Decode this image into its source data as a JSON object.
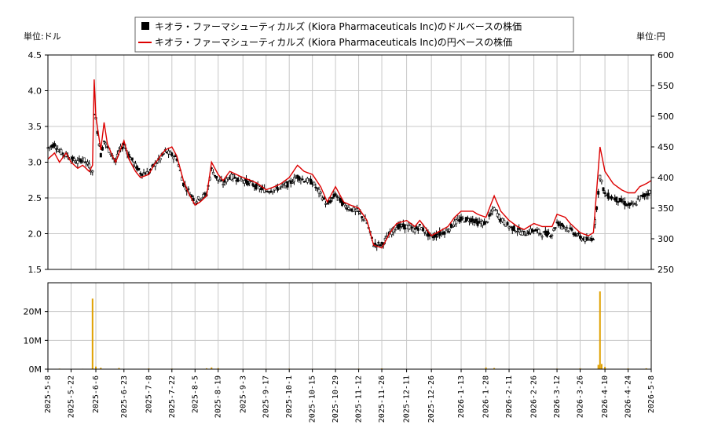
{
  "legend": {
    "usd_label": "キオラ・ファーマシューティカルズ (Kiora Pharmaceuticals Inc)のドルベースの株価",
    "jpy_label": "キオラ・ファーマシューティカルズ (Kiora Pharmaceuticals Inc)の円ベースの株価"
  },
  "left_unit": "単位:ドル",
  "right_unit": "単位:円",
  "colors": {
    "usd": "#000000",
    "jpy": "#dd0000",
    "volume": "#e0a000",
    "grid": "#c8c8c8"
  },
  "chart_data": [
    {
      "type": "line",
      "title": "",
      "x_ticks": [
        "2025-5-8",
        "2025-5-22",
        "2025-6-6",
        "2025-6-23",
        "2025-7-8",
        "2025-7-22",
        "2025-8-5",
        "2025-8-19",
        "2025-9-3",
        "2025-9-17",
        "2025-10-1",
        "2025-10-15",
        "2025-10-29",
        "2025-11-12",
        "2025-11-26",
        "2025-12-11",
        "2025-12-26",
        "2026-1-13",
        "2026-1-28",
        "2026-2-11",
        "2026-2-26",
        "2026-3-12",
        "2026-3-26",
        "2026-4-10",
        "2026-4-24",
        "2026-5-8"
      ],
      "y_left_ticks": [
        "1.5",
        "2.0",
        "2.5",
        "3.0",
        "3.5",
        "4.0",
        "4.5"
      ],
      "y_left_range": [
        1.5,
        4.5
      ],
      "y_right_ticks": [
        "250",
        "300",
        "350",
        "400",
        "450",
        "500",
        "550",
        "600"
      ],
      "y_right_range": [
        250,
        600
      ],
      "grid": true,
      "legend_position": "top-center",
      "series": [
        {
          "name": "キオラ・ファーマシューティカルズ (Kiora Pharmaceuticals Inc)のドルベースの株価",
          "axis": "left",
          "style": "candlestick",
          "points": [
            [
              "2025-5-8",
              3.2
            ],
            [
              "2025-5-12",
              3.25
            ],
            [
              "2025-5-15",
              3.15
            ],
            [
              "2025-5-19",
              3.1
            ],
            [
              "2025-5-22",
              3.05
            ],
            [
              "2025-5-26",
              3.0
            ],
            [
              "2025-5-29",
              3.05
            ],
            [
              "2025-6-2",
              2.95
            ],
            [
              "2025-6-4",
              2.85
            ],
            [
              "2025-6-5",
              3.7
            ],
            [
              "2025-6-6",
              3.6
            ],
            [
              "2025-6-9",
              3.1
            ],
            [
              "2025-6-11",
              3.3
            ],
            [
              "2025-6-13",
              3.2
            ],
            [
              "2025-6-16",
              3.1
            ],
            [
              "2025-6-18",
              3.0
            ],
            [
              "2025-6-20",
              3.15
            ],
            [
              "2025-6-23",
              3.25
            ],
            [
              "2025-6-26",
              3.1
            ],
            [
              "2025-6-30",
              2.95
            ],
            [
              "2025-7-3",
              2.85
            ],
            [
              "2025-7-8",
              2.85
            ],
            [
              "2025-7-11",
              2.95
            ],
            [
              "2025-7-15",
              3.05
            ],
            [
              "2025-7-18",
              3.15
            ],
            [
              "2025-7-22",
              3.1
            ],
            [
              "2025-7-25",
              3.05
            ],
            [
              "2025-7-29",
              2.7
            ],
            [
              "2025-8-1",
              2.6
            ],
            [
              "2025-8-5",
              2.45
            ],
            [
              "2025-8-8",
              2.5
            ],
            [
              "2025-8-12",
              2.55
            ],
            [
              "2025-8-15",
              2.9
            ],
            [
              "2025-8-19",
              2.75
            ],
            [
              "2025-8-22",
              2.7
            ],
            [
              "2025-8-26",
              2.8
            ],
            [
              "2025-9-3",
              2.75
            ],
            [
              "2025-9-8",
              2.7
            ],
            [
              "2025-9-12",
              2.65
            ],
            [
              "2025-9-17",
              2.6
            ],
            [
              "2025-9-22",
              2.62
            ],
            [
              "2025-9-26",
              2.65
            ],
            [
              "2025-10-1",
              2.7
            ],
            [
              "2025-10-6",
              2.8
            ],
            [
              "2025-10-10",
              2.75
            ],
            [
              "2025-10-15",
              2.72
            ],
            [
              "2025-10-20",
              2.55
            ],
            [
              "2025-10-24",
              2.4
            ],
            [
              "2025-10-29",
              2.55
            ],
            [
              "2025-11-3",
              2.4
            ],
            [
              "2025-11-7",
              2.35
            ],
            [
              "2025-11-12",
              2.3
            ],
            [
              "2025-11-17",
              2.15
            ],
            [
              "2025-11-21",
              1.85
            ],
            [
              "2025-11-26",
              1.85
            ],
            [
              "2025-12-1",
              2.0
            ],
            [
              "2025-12-5",
              2.1
            ],
            [
              "2025-12-11",
              2.1
            ],
            [
              "2025-12-16",
              2.05
            ],
            [
              "2025-12-19",
              2.1
            ],
            [
              "2025-12-26",
              1.95
            ],
            [
              "2026-1-5",
              2.05
            ],
            [
              "2026-1-9",
              2.15
            ],
            [
              "2026-1-13",
              2.2
            ],
            [
              "2026-1-20",
              2.2
            ],
            [
              "2026-1-23",
              2.15
            ],
            [
              "2026-1-28",
              2.15
            ],
            [
              "2026-2-2",
              2.35
            ],
            [
              "2026-2-6",
              2.2
            ],
            [
              "2026-2-11",
              2.1
            ],
            [
              "2026-2-16",
              2.05
            ],
            [
              "2026-2-20",
              2.0
            ],
            [
              "2026-2-26",
              2.05
            ],
            [
              "2026-3-3",
              2.0
            ],
            [
              "2026-3-9",
              2.0
            ],
            [
              "2026-3-12",
              2.15
            ],
            [
              "2026-3-17",
              2.1
            ],
            [
              "2026-3-20",
              2.05
            ],
            [
              "2026-3-26",
              1.95
            ],
            [
              "2026-3-31",
              1.9
            ],
            [
              "2026-4-3",
              1.95
            ],
            [
              "2026-4-7",
              2.8
            ],
            [
              "2026-4-10",
              2.55
            ],
            [
              "2026-4-15",
              2.5
            ],
            [
              "2026-4-20",
              2.45
            ],
            [
              "2026-4-24",
              2.4
            ],
            [
              "2026-4-28",
              2.4
            ],
            [
              "2026-5-1",
              2.5
            ],
            [
              "2026-5-5",
              2.55
            ],
            [
              "2026-5-8",
              2.6
            ]
          ]
        },
        {
          "name": "キオラ・ファーマシューティカルズ (Kiora Pharmaceuticals Inc)の円ベースの株価",
          "axis": "right",
          "style": "line",
          "points": [
            [
              "2025-5-8",
              430
            ],
            [
              "2025-5-12",
              440
            ],
            [
              "2025-5-15",
              425
            ],
            [
              "2025-5-19",
              440
            ],
            [
              "2025-5-22",
              425
            ],
            [
              "2025-5-26",
              415
            ],
            [
              "2025-5-29",
              420
            ],
            [
              "2025-6-2",
              410
            ],
            [
              "2025-6-4",
              420
            ],
            [
              "2025-6-5",
              560
            ],
            [
              "2025-6-6",
              500
            ],
            [
              "2025-6-9",
              445
            ],
            [
              "2025-6-11",
              490
            ],
            [
              "2025-6-13",
              455
            ],
            [
              "2025-6-16",
              435
            ],
            [
              "2025-6-18",
              425
            ],
            [
              "2025-6-20",
              440
            ],
            [
              "2025-6-23",
              460
            ],
            [
              "2025-6-26",
              430
            ],
            [
              "2025-6-30",
              410
            ],
            [
              "2025-7-3",
              400
            ],
            [
              "2025-7-8",
              405
            ],
            [
              "2025-7-11",
              420
            ],
            [
              "2025-7-15",
              435
            ],
            [
              "2025-7-18",
              445
            ],
            [
              "2025-7-22",
              450
            ],
            [
              "2025-7-25",
              435
            ],
            [
              "2025-7-29",
              395
            ],
            [
              "2025-8-1",
              375
            ],
            [
              "2025-8-5",
              355
            ],
            [
              "2025-8-8",
              360
            ],
            [
              "2025-8-12",
              370
            ],
            [
              "2025-8-15",
              425
            ],
            [
              "2025-8-19",
              405
            ],
            [
              "2025-8-22",
              395
            ],
            [
              "2025-8-26",
              410
            ],
            [
              "2025-9-3",
              400
            ],
            [
              "2025-9-8",
              395
            ],
            [
              "2025-9-12",
              390
            ],
            [
              "2025-9-17",
              380
            ],
            [
              "2025-9-22",
              385
            ],
            [
              "2025-9-26",
              390
            ],
            [
              "2025-10-1",
              400
            ],
            [
              "2025-10-6",
              420
            ],
            [
              "2025-10-10",
              410
            ],
            [
              "2025-10-15",
              405
            ],
            [
              "2025-10-20",
              385
            ],
            [
              "2025-10-24",
              360
            ],
            [
              "2025-10-29",
              385
            ],
            [
              "2025-11-3",
              360
            ],
            [
              "2025-11-7",
              355
            ],
            [
              "2025-11-12",
              350
            ],
            [
              "2025-11-17",
              330
            ],
            [
              "2025-11-21",
              290
            ],
            [
              "2025-11-26",
              285
            ],
            [
              "2025-12-1",
              310
            ],
            [
              "2025-12-5",
              325
            ],
            [
              "2025-12-11",
              330
            ],
            [
              "2025-12-16",
              320
            ],
            [
              "2025-12-19",
              330
            ],
            [
              "2025-12-26",
              305
            ],
            [
              "2026-1-5",
              320
            ],
            [
              "2026-1-9",
              335
            ],
            [
              "2026-1-13",
              345
            ],
            [
              "2026-1-20",
              345
            ],
            [
              "2026-1-23",
              340
            ],
            [
              "2026-1-28",
              335
            ],
            [
              "2026-2-2",
              370
            ],
            [
              "2026-2-6",
              345
            ],
            [
              "2026-2-11",
              330
            ],
            [
              "2026-2-16",
              320
            ],
            [
              "2026-2-20",
              315
            ],
            [
              "2026-2-26",
              325
            ],
            [
              "2026-3-3",
              320
            ],
            [
              "2026-3-9",
              320
            ],
            [
              "2026-3-12",
              340
            ],
            [
              "2026-3-17",
              335
            ],
            [
              "2026-3-20",
              325
            ],
            [
              "2026-3-26",
              310
            ],
            [
              "2026-3-31",
              305
            ],
            [
              "2026-4-3",
              310
            ],
            [
              "2026-4-7",
              450
            ],
            [
              "2026-4-10",
              410
            ],
            [
              "2026-4-15",
              390
            ],
            [
              "2026-4-20",
              380
            ],
            [
              "2026-4-24",
              375
            ],
            [
              "2026-4-28",
              375
            ],
            [
              "2026-5-1",
              385
            ],
            [
              "2026-5-5",
              390
            ],
            [
              "2026-5-8",
              395
            ]
          ]
        }
      ]
    },
    {
      "type": "bar",
      "title": "",
      "y_ticks": [
        "0M",
        "10M",
        "20M"
      ],
      "y_range": [
        0,
        30000000
      ],
      "series": [
        {
          "name": "",
          "points": [
            [
              "2025-5-15",
              200000
            ],
            [
              "2025-5-29",
              150000
            ],
            [
              "2025-6-4",
              24500000
            ],
            [
              "2025-6-6",
              900000
            ],
            [
              "2025-6-9",
              500000
            ],
            [
              "2025-6-20",
              400000
            ],
            [
              "2025-7-8",
              250000
            ],
            [
              "2025-7-22",
              200000
            ],
            [
              "2025-8-12",
              300000
            ],
            [
              "2025-8-15",
              600000
            ],
            [
              "2025-8-19",
              350000
            ],
            [
              "2025-9-17",
              150000
            ],
            [
              "2025-10-1",
              200000
            ],
            [
              "2025-10-15",
              150000
            ],
            [
              "2025-11-12",
              200000
            ],
            [
              "2025-11-26",
              250000
            ],
            [
              "2025-12-26",
              150000
            ],
            [
              "2026-1-28",
              600000
            ],
            [
              "2026-2-2",
              400000
            ],
            [
              "2026-2-26",
              150000
            ],
            [
              "2026-3-12",
              200000
            ],
            [
              "2026-3-26",
              300000
            ],
            [
              "2026-4-6",
              1500000
            ],
            [
              "2026-4-7",
              27000000
            ],
            [
              "2026-4-8",
              1800000
            ],
            [
              "2026-4-10",
              800000
            ],
            [
              "2026-4-24",
              250000
            ],
            [
              "2026-5-5",
              300000
            ]
          ]
        }
      ]
    }
  ]
}
